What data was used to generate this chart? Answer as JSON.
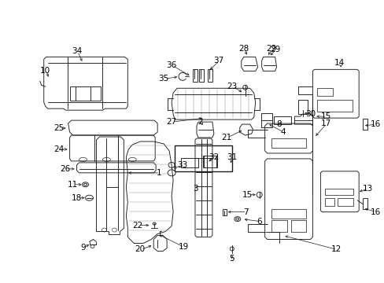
{
  "bg_color": "#ffffff",
  "line_color": "#1a1a1a",
  "text_color": "#000000",
  "fig_width": 4.89,
  "fig_height": 3.6,
  "dpi": 100,
  "lw": 0.65,
  "fs": 7.5
}
